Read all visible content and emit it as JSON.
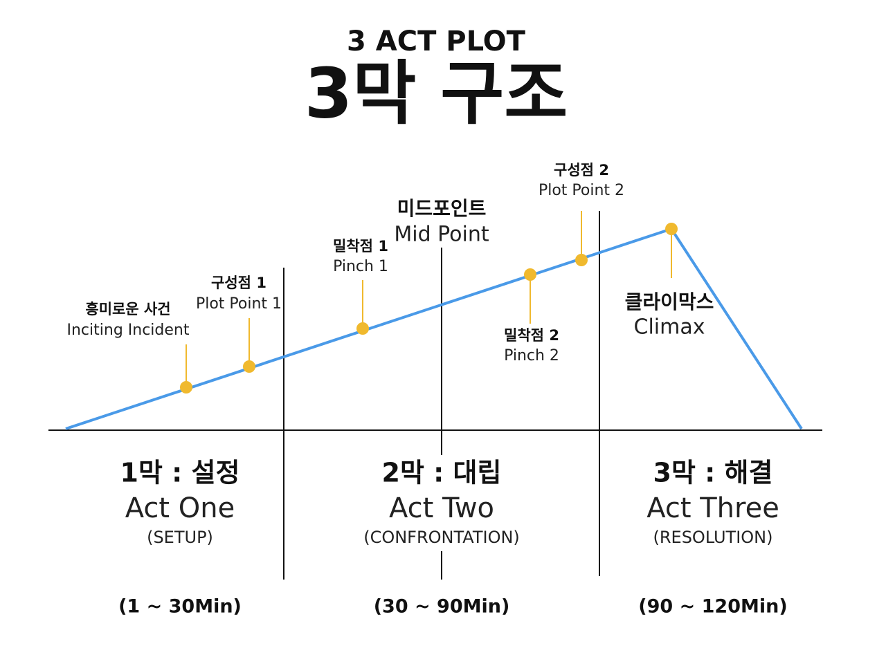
{
  "header": {
    "subtitle": "3 ACT PLOT",
    "title": "3막 구조"
  },
  "points": [
    {
      "label_ko": "흥미로운 사건",
      "label_en": "Inciting Incident"
    },
    {
      "label_ko": "구성점 1",
      "label_en": "Plot Point 1"
    },
    {
      "label_ko": "밀착점 1",
      "label_en": "Pinch 1"
    },
    {
      "label_ko": "미드포인트",
      "label_en": "Mid Point"
    },
    {
      "label_ko": "밀착점 2",
      "label_en": "Pinch 2"
    },
    {
      "label_ko": "구성점 2",
      "label_en": "Plot Point 2"
    },
    {
      "label_ko": "클라이막스",
      "label_en": "Climax"
    }
  ],
  "acts": [
    {
      "title": "1막 : 설정",
      "name": "Act One",
      "subtitle": "(SETUP)",
      "duration": "(1 ~ 30Min)"
    },
    {
      "title": "2막 : 대립",
      "name": "Act Two",
      "subtitle": "(CONFRONTATION)",
      "duration": "(30 ~ 90Min)"
    },
    {
      "title": "3막 : 해결",
      "name": "Act Three",
      "subtitle": "(RESOLUTION)",
      "duration": "(90 ~ 120Min)"
    }
  ]
}
